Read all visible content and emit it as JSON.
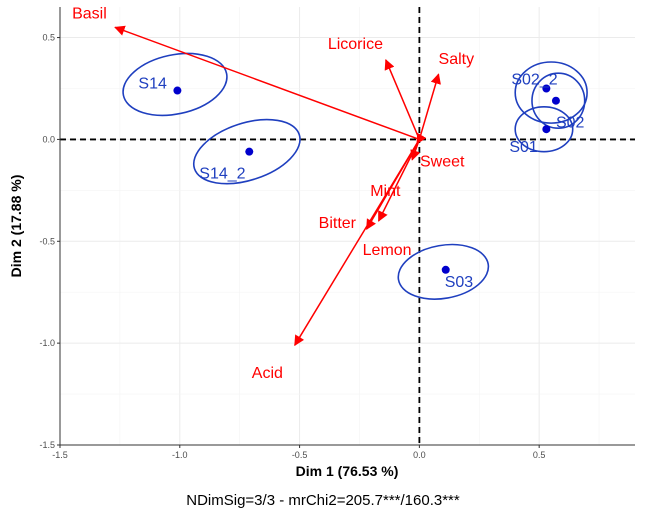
{
  "chart_data": {
    "type": "scatter",
    "xlabel": "Dim 1 (76.53 %)",
    "ylabel": "Dim 2 (17.88 %)",
    "xlim": [
      -1.5,
      0.9
    ],
    "ylim": [
      -1.5,
      0.65
    ],
    "x_ticks": [
      -1.5,
      -1.0,
      -0.5,
      0.0,
      0.5
    ],
    "y_ticks": [
      -1.5,
      -1.0,
      -0.5,
      0.0,
      0.5
    ],
    "x_tick_labels": [
      "-1.5",
      "-1.0",
      "-0.5",
      "0.0",
      "0.5"
    ],
    "y_tick_labels": [
      "-1.5",
      "-1.0",
      "-0.5",
      "0.0",
      "0.5"
    ],
    "grid": true,
    "reference_lines": {
      "x": 0,
      "y": 0,
      "style": "dashed"
    },
    "colors": {
      "variables": "#ff0000",
      "individuals": "#1f3fbf"
    },
    "variables": [
      {
        "name": "Basil",
        "x": -1.27,
        "y": 0.55
      },
      {
        "name": "Licorice",
        "x": -0.14,
        "y": 0.39
      },
      {
        "name": "Salty",
        "x": 0.08,
        "y": 0.32
      },
      {
        "name": "Sweet",
        "x": -0.01,
        "y": -0.02
      },
      {
        "name": "Mint",
        "x": -0.03,
        "y": -0.1
      },
      {
        "name": "Bitter",
        "x": -0.22,
        "y": -0.44
      },
      {
        "name": "Lemon",
        "x": -0.17,
        "y": -0.4
      },
      {
        "name": "Acid",
        "x": -0.52,
        "y": -1.01
      }
    ],
    "individuals": [
      {
        "name": "S14",
        "x": -1.01,
        "y": 0.24
      },
      {
        "name": "S14_2",
        "x": -0.71,
        "y": -0.06
      },
      {
        "name": "S02_2",
        "x": 0.53,
        "y": 0.25
      },
      {
        "name": "S02",
        "x": 0.57,
        "y": 0.19
      },
      {
        "name": "S01",
        "x": 0.53,
        "y": 0.05
      },
      {
        "name": "S03",
        "x": 0.11,
        "y": -0.64
      }
    ],
    "ellipses": [
      {
        "center": [
          -1.02,
          0.27
        ],
        "rx": 0.22,
        "ry": 0.145,
        "angle": -12
      },
      {
        "center": [
          -0.72,
          -0.06
        ],
        "rx": 0.23,
        "ry": 0.14,
        "angle": -18
      },
      {
        "center": [
          0.55,
          0.23
        ],
        "rx": 0.15,
        "ry": 0.15,
        "angle": 0
      },
      {
        "center": [
          0.58,
          0.19
        ],
        "rx": 0.11,
        "ry": 0.135,
        "angle": 0
      },
      {
        "center": [
          0.52,
          0.05
        ],
        "rx": 0.12,
        "ry": 0.11,
        "angle": 0
      },
      {
        "center": [
          0.1,
          -0.65
        ],
        "rx": 0.19,
        "ry": 0.13,
        "angle": -10
      }
    ]
  },
  "caption": "NDimSig=3/3 - mrChi2=205.7***/160.3***"
}
